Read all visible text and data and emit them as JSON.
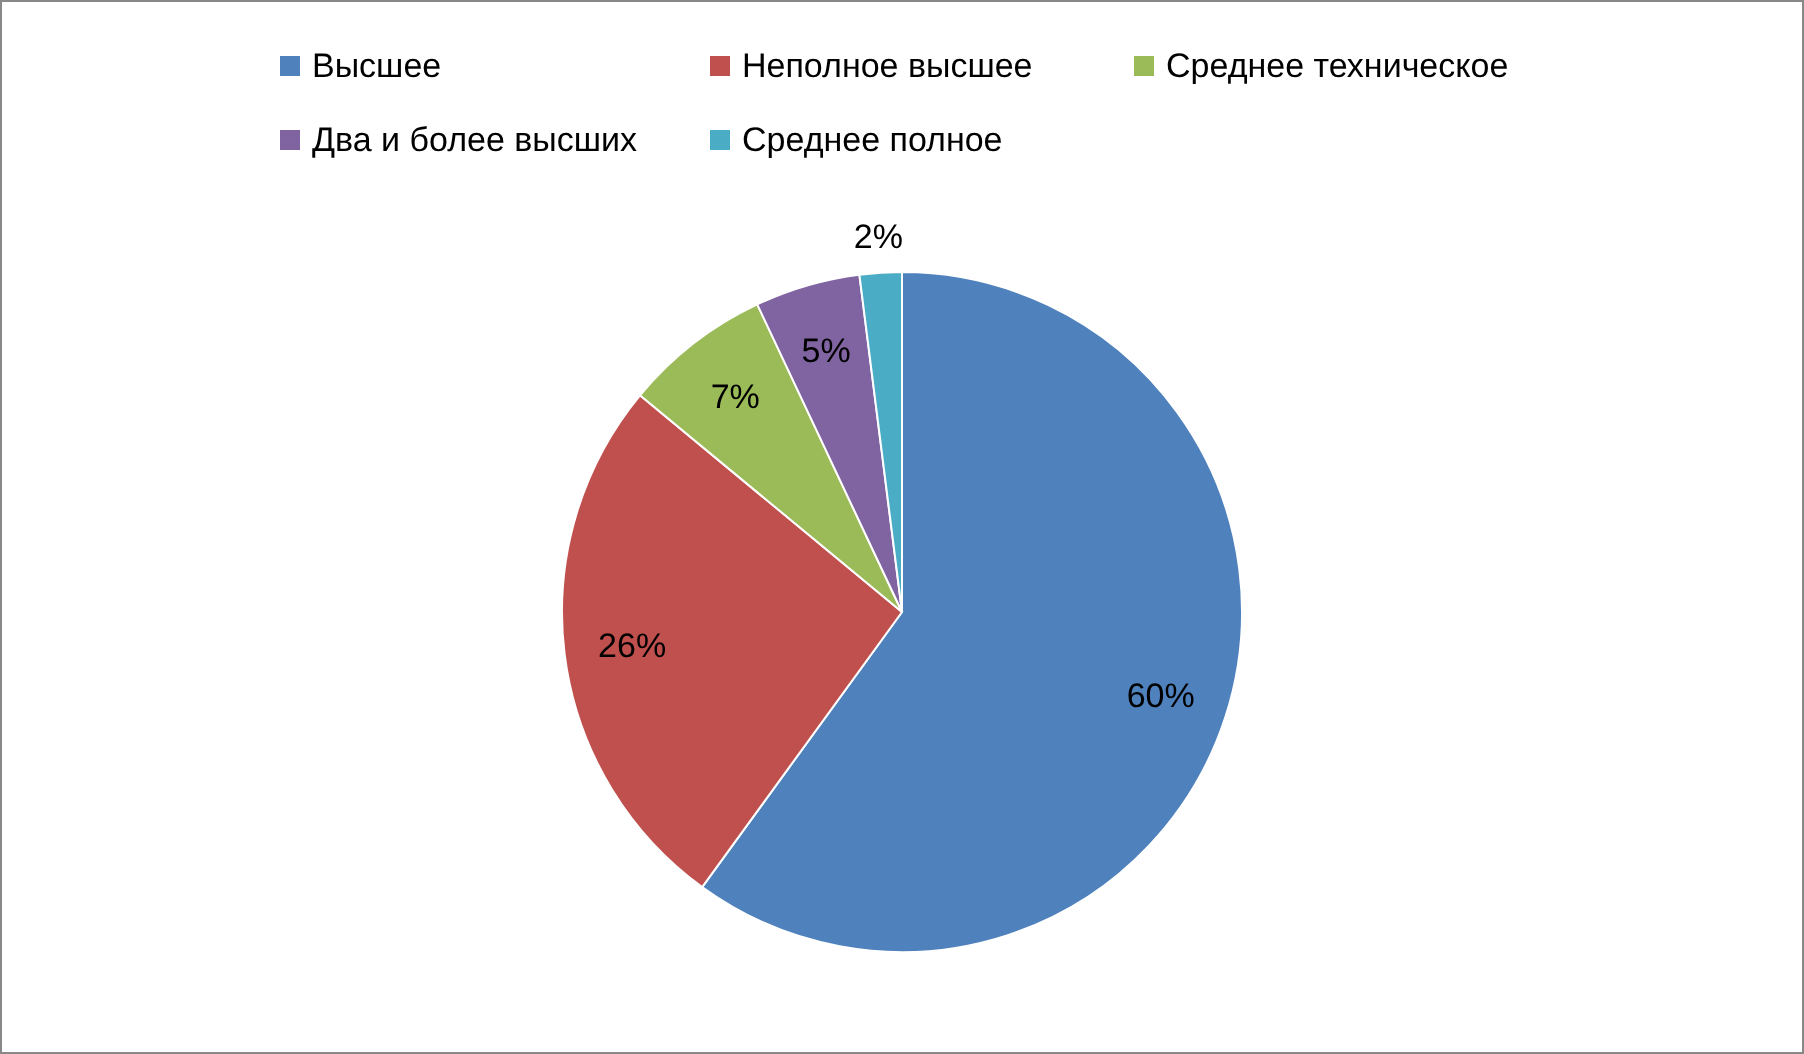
{
  "chart_data": {
    "type": "pie",
    "categories": [
      "Высшее",
      "Неполное высшее",
      "Среднее техническое",
      "Два и более высших",
      "Среднее полное"
    ],
    "values": [
      60,
      26,
      7,
      5,
      2
    ],
    "colors": [
      "#4f81bd",
      "#c0504d",
      "#9bbb59",
      "#8064a2",
      "#4bacc6"
    ],
    "value_labels": [
      "60%",
      "26%",
      "7%",
      "5%",
      "2%"
    ],
    "legend": "top"
  }
}
